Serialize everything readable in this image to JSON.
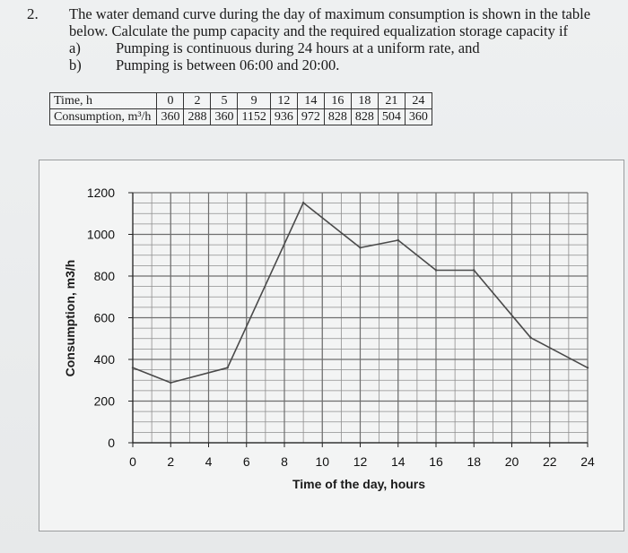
{
  "problem": {
    "number": "2.",
    "intro_line1": "The water demand curve during the day of maximum consumption is shown in the table",
    "intro_line2": "below. Calculate the pump capacity and the required equalization storage capacity if",
    "parts": [
      {
        "label": "a)",
        "text": "Pumping is continuous during 24 hours at a uniform rate, and"
      },
      {
        "label": "b)",
        "text": "Pumping is between 06:00 and 20:00."
      }
    ]
  },
  "table": {
    "row1_header": "Time, h",
    "row2_header": "Consumption, m³/h",
    "times": [
      "0",
      "2",
      "5",
      "9",
      "12",
      "14",
      "16",
      "18",
      "21",
      "24"
    ],
    "consumption": [
      "360",
      "288",
      "360",
      "1152",
      "936",
      "972",
      "828",
      "828",
      "504",
      "360"
    ]
  },
  "chart_data": {
    "type": "line",
    "xlabel": "Time of the day, hours",
    "ylabel": "Consumption, m3/h",
    "x": [
      0,
      2,
      5,
      9,
      12,
      14,
      16,
      18,
      21,
      24
    ],
    "y": [
      360,
      288,
      360,
      1152,
      936,
      972,
      828,
      828,
      504,
      360
    ],
    "xlim": [
      0,
      24
    ],
    "ylim": [
      0,
      1200
    ],
    "x_ticks": [
      "0",
      "2",
      "4",
      "6",
      "8",
      "10",
      "12",
      "14",
      "16",
      "18",
      "20",
      "22",
      "24"
    ],
    "y_ticks": [
      "0",
      "200",
      "400",
      "600",
      "800",
      "1000",
      "1200"
    ],
    "grid": true,
    "line_color": "#4a4a4a",
    "grid_color": "#8e8e8e"
  }
}
